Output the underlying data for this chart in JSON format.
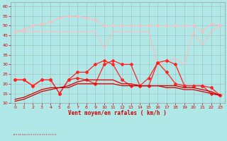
{
  "xlabel": "Vent moyen/en rafales ( km/h )",
  "bg_color": "#b0e8e8",
  "grid_color": "#999999",
  "xlim": [
    -0.5,
    23.5
  ],
  "ylim": [
    10,
    62
  ],
  "yticks": [
    10,
    15,
    20,
    25,
    30,
    35,
    40,
    45,
    50,
    55,
    60
  ],
  "xticks": [
    0,
    1,
    2,
    3,
    4,
    5,
    6,
    7,
    8,
    9,
    10,
    11,
    12,
    13,
    14,
    15,
    16,
    17,
    18,
    19,
    20,
    21,
    22,
    23
  ],
  "hours": [
    0,
    1,
    2,
    3,
    4,
    5,
    6,
    7,
    8,
    9,
    10,
    11,
    12,
    13,
    14,
    15,
    16,
    17,
    18,
    19,
    20,
    21,
    22,
    23
  ],
  "line_pink_upper": [
    47,
    48,
    50,
    51,
    52,
    54,
    55,
    55,
    54,
    53,
    50,
    50,
    50,
    50,
    50,
    50,
    50,
    50,
    50,
    50,
    50,
    47,
    51,
    50
  ],
  "line_pink_lower": [
    47,
    47,
    47,
    47,
    47,
    47,
    47,
    47,
    47,
    47,
    38,
    47,
    47,
    47,
    47,
    47,
    30,
    32,
    33,
    30,
    47,
    40,
    47,
    50
  ],
  "line_pink_smooth": [
    23,
    22,
    20,
    18,
    18,
    18,
    19,
    20,
    21,
    21,
    21,
    21,
    20,
    20,
    19,
    19,
    19,
    19,
    19,
    18,
    18,
    17,
    16,
    15
  ],
  "line_red_gust": [
    22,
    22,
    19,
    22,
    22,
    15,
    22,
    23,
    22,
    20,
    30,
    32,
    30,
    30,
    19,
    19,
    31,
    32,
    30,
    19,
    19,
    19,
    15,
    14
  ],
  "line_red_mean": [
    12,
    13,
    15,
    17,
    18,
    18,
    19,
    21,
    22,
    22,
    22,
    22,
    20,
    20,
    19,
    19,
    19,
    19,
    19,
    18,
    18,
    17,
    16,
    14
  ],
  "line_red_min": [
    11,
    12,
    14,
    16,
    17,
    18,
    18,
    20,
    20,
    20,
    20,
    20,
    19,
    19,
    19,
    19,
    19,
    18,
    18,
    17,
    17,
    16,
    15,
    14
  ],
  "line_red_sharp": [
    22,
    22,
    19,
    22,
    22,
    15,
    22,
    26,
    26,
    30,
    32,
    30,
    22,
    19,
    19,
    23,
    31,
    26,
    20,
    19,
    19,
    19,
    18,
    14
  ],
  "color_light_pink": "#ffbbbb",
  "color_pink_line": "#ff8888",
  "color_red": "#cc0000",
  "color_bright_red": "#ff2222",
  "arrow_text": "↗↑↑↑↖↑↖↖↑↑↑↑↑↑↑↑↑↑↑↑↑↑↑↑"
}
